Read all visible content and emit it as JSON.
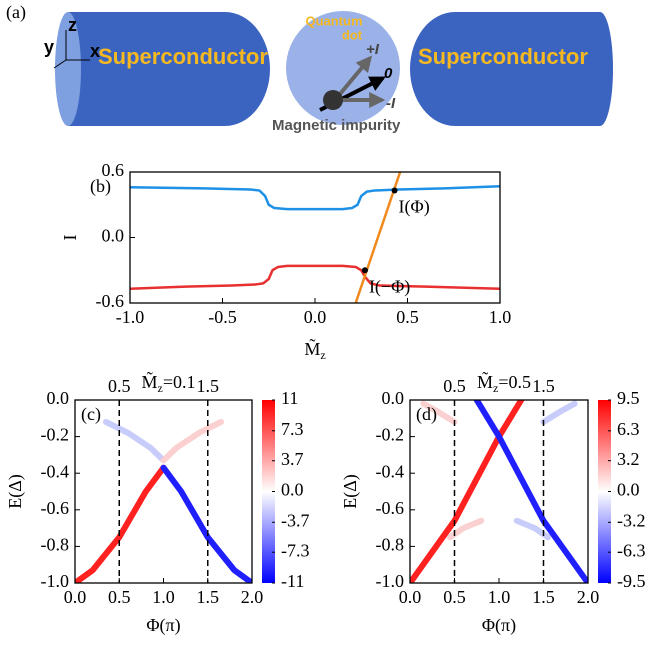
{
  "diagram": {
    "panel": "(a)",
    "axes": [
      "z",
      "y",
      "x"
    ],
    "left": "Superconductor",
    "right": "Superconductor",
    "dot": [
      "Quantum",
      "dot"
    ],
    "currents": [
      "+I",
      "0",
      "-I"
    ],
    "impurity": "Magnetic impurity"
  },
  "chart_data": [
    {
      "type": "line",
      "panel": "(b)",
      "y_label": "I",
      "x_label": {
        "main": "M̃",
        "sub": "z"
      },
      "xlim": [
        -1,
        1
      ],
      "xticks": [
        {
          "value": -1,
          "label": "-1.0"
        },
        -0.5,
        {
          "value": 0,
          "label": "0.0"
        },
        0.5,
        {
          "value": 1,
          "label": "1.0"
        }
      ],
      "ylim": [
        -0.6,
        0.6
      ],
      "yticks": [
        -0.6,
        {
          "value": 0,
          "label": "0.0"
        },
        0.6
      ],
      "series": [
        {
          "color": "#1e90e6",
          "x": [
            -1,
            -0.6,
            -0.35,
            -0.3,
            -0.27,
            -0.25,
            -0.22,
            -0.15,
            0,
            0.15,
            0.2,
            0.23,
            0.25,
            0.28,
            0.32,
            0.45,
            0.7,
            1
          ],
          "values": [
            0.46,
            0.45,
            0.44,
            0.43,
            0.38,
            0.3,
            0.27,
            0.26,
            0.26,
            0.26,
            0.27,
            0.3,
            0.38,
            0.42,
            0.43,
            0.44,
            0.45,
            0.47
          ]
        },
        {
          "color": "#e83030",
          "x": [
            -1,
            -0.7,
            -0.45,
            -0.32,
            -0.28,
            -0.25,
            -0.23,
            -0.2,
            -0.15,
            0,
            0.15,
            0.22,
            0.25,
            0.27,
            0.3,
            0.35,
            0.6,
            1
          ],
          "values": [
            -0.47,
            -0.45,
            -0.44,
            -0.43,
            -0.42,
            -0.38,
            -0.3,
            -0.27,
            -0.26,
            -0.26,
            -0.26,
            -0.27,
            -0.3,
            -0.36,
            -0.42,
            -0.44,
            -0.45,
            -0.47
          ]
        },
        {
          "color": "#f0891e",
          "x": [
            0.22,
            0.46
          ],
          "values": [
            -0.6,
            0.6
          ]
        }
      ],
      "annotations": [
        {
          "x": 0.43,
          "y": 0.43,
          "label": "I(Φ)"
        },
        {
          "x": 0.27,
          "y": -0.3,
          "label": "I(−Φ)"
        }
      ]
    },
    {
      "type": "heatmap",
      "panel": "(c)",
      "title": {
        "main": "M̃",
        "sub": "z",
        "rest": "=0.1"
      },
      "y_label": "E(Δ)",
      "x_label": "Φ(π)",
      "xlim": [
        0,
        2
      ],
      "xticks": [
        {
          "value": 0,
          "label": "0.0"
        },
        0.5,
        {
          "value": 1,
          "label": "1.0"
        },
        1.5,
        {
          "value": 2,
          "label": "2.0"
        }
      ],
      "ylim": [
        -1,
        0
      ],
      "yticks": [
        {
          "value": 0,
          "label": "0.0"
        },
        -0.2,
        -0.4,
        -0.6,
        -0.8,
        {
          "value": -1,
          "label": "-1.0"
        }
      ],
      "vlines": [
        0.5,
        1.5
      ],
      "colormap": [
        "#0000ff",
        "#ffffff",
        "#ff0000"
      ],
      "clim": [
        -11,
        11
      ],
      "cticks": [
        11,
        7.3,
        3.7,
        {
          "value": 0,
          "label": "0.0"
        },
        -3.7,
        -7.3,
        -11
      ],
      "series": [
        {
          "color": "#ff2020",
          "x": [
            0,
            0.2,
            0.5,
            0.8,
            1
          ],
          "values": [
            -1,
            -0.93,
            -0.75,
            -0.5,
            -0.37
          ]
        },
        {
          "color": "#2020ff",
          "x": [
            1,
            1.2,
            1.5,
            1.8,
            2
          ],
          "values": [
            -0.37,
            -0.5,
            -0.75,
            -0.93,
            -1
          ]
        },
        {
          "color": "#c8ccfa",
          "x": [
            0.35,
            0.6,
            0.85,
            1
          ],
          "values": [
            -0.12,
            -0.18,
            -0.26,
            -0.33
          ]
        },
        {
          "color": "#fad0d0",
          "x": [
            1,
            1.15,
            1.4,
            1.65
          ],
          "values": [
            -0.33,
            -0.26,
            -0.18,
            -0.12
          ]
        }
      ]
    },
    {
      "type": "heatmap",
      "panel": "(d)",
      "title": {
        "main": "M̃",
        "sub": "z",
        "rest": "=0.5"
      },
      "y_label": "E(Δ)",
      "x_label": "Φ(π)",
      "xlim": [
        0,
        2
      ],
      "xticks": [
        {
          "value": 0,
          "label": "0.0"
        },
        0.5,
        {
          "value": 1,
          "label": "1.0"
        },
        1.5,
        {
          "value": 2,
          "label": "2.0"
        }
      ],
      "ylim": [
        -1,
        0
      ],
      "yticks": [
        {
          "value": 0,
          "label": "0.0"
        },
        -0.2,
        -0.4,
        -0.6,
        -0.8,
        {
          "value": -1,
          "label": "-1.0"
        }
      ],
      "vlines": [
        0.5,
        1.5
      ],
      "colormap": [
        "#0000ff",
        "#ffffff",
        "#ff0000"
      ],
      "clim": [
        -9.5,
        9.5
      ],
      "cticks": [
        9.5,
        6.3,
        3.2,
        {
          "value": 0,
          "label": "0.0"
        },
        -3.2,
        -6.3,
        -9.5
      ],
      "series": [
        {
          "color": "#ff2020",
          "x": [
            0,
            0.5,
            1,
            1.25
          ],
          "values": [
            -1,
            -0.66,
            -0.2,
            0
          ]
        },
        {
          "color": "#2020ff",
          "x": [
            0.75,
            1,
            1.5,
            2
          ],
          "values": [
            0,
            -0.2,
            -0.66,
            -1
          ]
        },
        {
          "color": "#fad0d0",
          "x": [
            0.15,
            0.3,
            0.5
          ],
          "values": [
            -0.02,
            -0.06,
            -0.12
          ]
        },
        {
          "color": "#c8ccfa",
          "x": [
            1.5,
            1.7,
            1.85
          ],
          "values": [
            -0.12,
            -0.06,
            -0.02
          ]
        },
        {
          "color": "#fad0d0",
          "x": [
            0.45,
            0.6,
            0.8
          ],
          "values": [
            -0.75,
            -0.7,
            -0.66
          ]
        },
        {
          "color": "#c8ccfa",
          "x": [
            1.2,
            1.4,
            1.55
          ],
          "values": [
            -0.66,
            -0.7,
            -0.75
          ]
        }
      ]
    }
  ]
}
